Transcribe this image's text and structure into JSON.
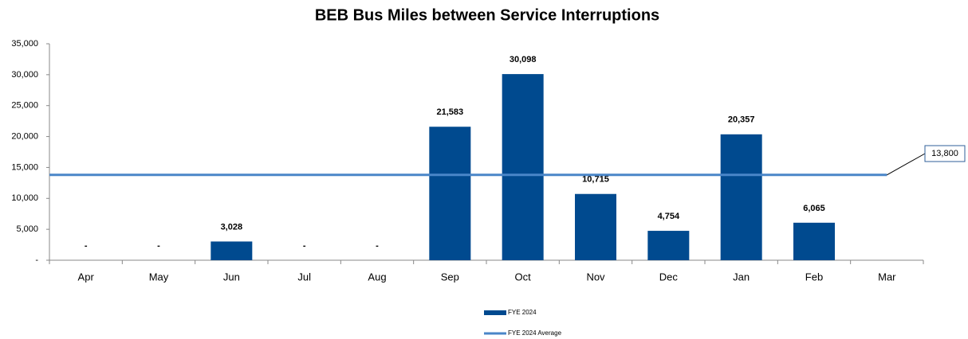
{
  "chart_data": {
    "type": "bar",
    "title": "BEB Bus Miles between Service Interruptions",
    "categories": [
      "Apr",
      "May",
      "Jun",
      "Jul",
      "Aug",
      "Sep",
      "Oct",
      "Nov",
      "Dec",
      "Jan",
      "Feb",
      "Mar"
    ],
    "series": [
      {
        "name": "FYE 2024",
        "color": "#004a8f",
        "type": "bar",
        "values": [
          0,
          0,
          3028,
          0,
          0,
          21583,
          30098,
          10715,
          4754,
          20357,
          6065,
          null
        ],
        "value_labels": [
          "-",
          "-",
          "3,028",
          "-",
          "-",
          "21,583",
          "30,098",
          "10,715",
          "4,754",
          "20,357",
          "6,065",
          null
        ]
      },
      {
        "name": "FYE 2024 Average",
        "color": "#4a86c8",
        "type": "line",
        "values": [
          13800,
          13800,
          13800,
          13800,
          13800,
          13800,
          13800,
          13800,
          13800,
          13800,
          13800,
          13800
        ],
        "end_label": "13,800"
      }
    ],
    "ylim": [
      0,
      35000
    ],
    "yticks": [
      {
        "value": 0,
        "label": "-"
      },
      {
        "value": 5000,
        "label": "5,000"
      },
      {
        "value": 10000,
        "label": "10,000"
      },
      {
        "value": 15000,
        "label": "15,000"
      },
      {
        "value": 20000,
        "label": "20,000"
      },
      {
        "value": 25000,
        "label": "25,000"
      },
      {
        "value": 30000,
        "label": "30,000"
      },
      {
        "value": 35000,
        "label": "35,000"
      }
    ],
    "legend": "bottom"
  }
}
